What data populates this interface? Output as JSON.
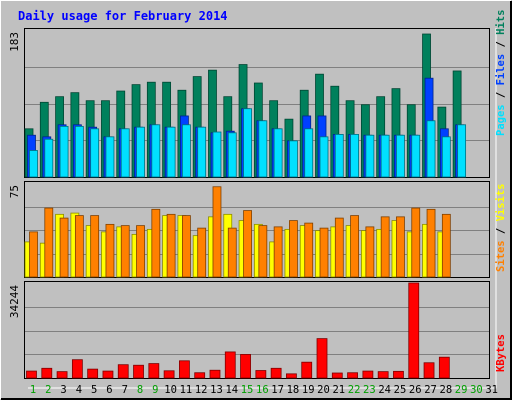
{
  "chart_data": {
    "type": "bar",
    "title": "Daily usage for February 2014",
    "days": [
      "1",
      "2",
      "3",
      "4",
      "5",
      "6",
      "7",
      "8",
      "9",
      "10",
      "11",
      "12",
      "13",
      "14",
      "15",
      "16",
      "17",
      "18",
      "19",
      "20",
      "21",
      "22",
      "23",
      "24",
      "25",
      "26",
      "27",
      "28",
      "29",
      "30",
      "31"
    ],
    "weekend_days": [
      "1",
      "2",
      "8",
      "9",
      "15",
      "16",
      "22",
      "23",
      "29",
      "30"
    ],
    "max_labels": {
      "hits": "183",
      "visits": "75",
      "kbytes": "34244"
    },
    "axis_labels": {
      "hits_panel": [
        "Pages",
        "Files",
        "Hits"
      ],
      "visits_panel": [
        "Sites",
        "Visits"
      ],
      "kbytes_panel": "KBytes"
    },
    "panels": {
      "hits": {
        "ymax": 183,
        "series": [
          {
            "name": "Hits",
            "color": "#00805c",
            "values": [
              60,
              93,
              100,
              105,
              95,
              95,
              107,
              115,
              118,
              118,
              108,
              125,
              133,
              100,
              140,
              117,
              95,
              72,
              108,
              128,
              113,
              95,
              90,
              100,
              110,
              90,
              178,
              87,
              132,
              0,
              0
            ]
          },
          {
            "name": "Files",
            "color": "#0040ff",
            "values": [
              52,
              50,
              65,
              65,
              62,
              50,
              60,
              62,
              65,
              62,
              76,
              62,
              55,
              57,
              85,
              70,
              60,
              45,
              76,
              76,
              53,
              53,
              52,
              52,
              52,
              52,
              123,
              60,
              65,
              0,
              0
            ]
          },
          {
            "name": "Pages",
            "color": "#00e0ff",
            "values": [
              33,
              47,
              63,
              63,
              60,
              50,
              60,
              62,
              65,
              62,
              65,
              62,
              56,
              55,
              85,
              70,
              60,
              45,
              60,
              50,
              53,
              53,
              52,
              52,
              52,
              52,
              70,
              50,
              65,
              0,
              0
            ]
          }
        ]
      },
      "visits": {
        "ymax": 75,
        "series": [
          {
            "name": "Sites",
            "color": "#ff8000",
            "values": [
              36,
              55,
              47,
              49,
              49,
              42,
              41,
              41,
              54,
              50,
              49,
              39,
              72,
              39,
              53,
              41,
              40,
              45,
              43,
              39,
              47,
              49,
              40,
              48,
              48,
              55,
              54,
              50,
              0,
              0,
              0
            ]
          },
          {
            "name": "Visits",
            "color": "#ffff00",
            "values": [
              28,
              27,
              50,
              51,
              41,
              36,
              40,
              34,
              38,
              49,
              49,
              33,
              48,
              50,
              45,
              42,
              28,
              38,
              41,
              37,
              40,
              41,
              37,
              38,
              45,
              36,
              42,
              36,
              0,
              0,
              0
            ]
          }
        ]
      },
      "kbytes": {
        "ymax": 34244,
        "series": [
          {
            "name": "KBytes",
            "color": "#ff0000",
            "values": [
              2500,
              3500,
              2300,
              6600,
              3200,
              2500,
              4800,
              4600,
              5200,
              2600,
              6200,
              1900,
              2800,
              9400,
              8500,
              2700,
              3500,
              1500,
              5700,
              14200,
              1800,
              1900,
              2500,
              2300,
              2400,
              34244,
              5500,
              7500,
              0,
              0,
              0
            ]
          }
        ]
      }
    }
  }
}
